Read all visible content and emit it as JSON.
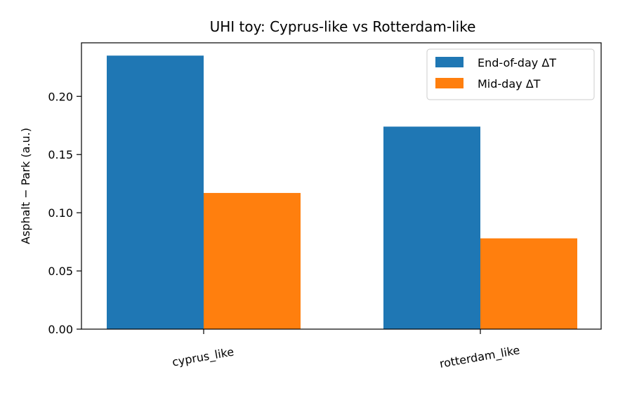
{
  "chart_data": {
    "type": "bar",
    "title": "UHI toy: Cyprus-like vs Rotterdam-like",
    "xlabel": "",
    "ylabel": "Asphalt − Park (a.u.)",
    "categories": [
      "cyprus_like",
      "rotterdam_like"
    ],
    "series": [
      {
        "name": "End-of-day ΔT",
        "values": [
          0.235,
          0.174
        ],
        "color": "#1f77b4"
      },
      {
        "name": "Mid-day ΔT",
        "values": [
          0.117,
          0.078
        ],
        "color": "#ff7f0e"
      }
    ],
    "ylim": [
      0,
      0.246
    ],
    "yticks": [
      0.0,
      0.05,
      0.1,
      0.15,
      0.2
    ],
    "ytick_labels": [
      "0.00",
      "0.05",
      "0.10",
      "0.15",
      "0.20"
    ],
    "legend_position": "top-right",
    "grid": false,
    "x_tick_rotation": "slanted"
  }
}
